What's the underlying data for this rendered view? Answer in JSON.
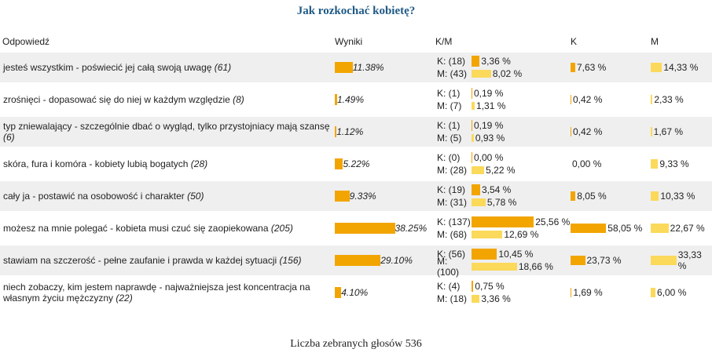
{
  "title": "Jak rozkochać kobietę?",
  "headers": {
    "answer": "Odpowiedź",
    "results": "Wyniki",
    "km": "K/M",
    "k": "K",
    "m": "M"
  },
  "rows": [
    {
      "text": "jesteś wszystkim - poświecić jej całą swoją uwagę",
      "count": "(61)",
      "pct": "11.38%",
      "pct_v": 11.38,
      "k_line": "K: (18)",
      "k_pct": "3,36 %",
      "k_v": 3.36,
      "m_line": "M: (43)",
      "m_pct": "8,02 %",
      "m_v": 8.02,
      "kk": "7,63 %",
      "kk_v": 7.63,
      "mm": "14,33 %",
      "mm_v": 14.33
    },
    {
      "text": "zrośnięci - dopasować się do niej w każdym względzie",
      "count": "(8)",
      "pct": "1.49%",
      "pct_v": 1.49,
      "k_line": "K: (1)",
      "k_pct": "0,19 %",
      "k_v": 0.19,
      "m_line": "M: (7)",
      "m_pct": "1,31 %",
      "m_v": 1.31,
      "kk": "0,42 %",
      "kk_v": 0.42,
      "mm": "2,33 %",
      "mm_v": 2.33
    },
    {
      "text": "typ zniewalający - szczególnie dbać o wygląd, tylko przystojniacy mają szansę",
      "count": "(6)",
      "pct": "1.12%",
      "pct_v": 1.12,
      "k_line": "K: (1)",
      "k_pct": "0,19 %",
      "k_v": 0.19,
      "m_line": "M: (5)",
      "m_pct": "0,93 %",
      "m_v": 0.93,
      "kk": "0,42 %",
      "kk_v": 0.42,
      "mm": "1,67 %",
      "mm_v": 1.67
    },
    {
      "text": "skóra, fura i komóra - kobiety lubią bogatych",
      "count": "(28)",
      "pct": "5.22%",
      "pct_v": 5.22,
      "k_line": "K: (0)",
      "k_pct": "0,00 %",
      "k_v": 0.0,
      "m_line": "M: (28)",
      "m_pct": "5,22 %",
      "m_v": 5.22,
      "kk": "0,00 %",
      "kk_v": 0.0,
      "mm": "9,33 %",
      "mm_v": 9.33
    },
    {
      "text": "cały ja - postawić na osobowość i charakter",
      "count": "(50)",
      "pct": "9.33%",
      "pct_v": 9.33,
      "k_line": "K: (19)",
      "k_pct": "3,54 %",
      "k_v": 3.54,
      "m_line": "M: (31)",
      "m_pct": "5,78 %",
      "m_v": 5.78,
      "kk": "8,05 %",
      "kk_v": 8.05,
      "mm": "10,33 %",
      "mm_v": 10.33
    },
    {
      "text": "możesz na mnie polegać - kobieta musi czuć się zaopiekowana",
      "count": "(205)",
      "pct": "38.25%",
      "pct_v": 38.25,
      "k_line": "K: (137)",
      "k_pct": "25,56 %",
      "k_v": 25.56,
      "m_line": "M: (68)",
      "m_pct": "12,69 %",
      "m_v": 12.69,
      "kk": "58,05 %",
      "kk_v": 58.05,
      "mm": "22,67 %",
      "mm_v": 22.67
    },
    {
      "text": "stawiam na szczerość - pełne zaufanie i prawda w każdej sytuacji",
      "count": "(156)",
      "pct": "29.10%",
      "pct_v": 29.1,
      "k_line": "K: (56)",
      "k_pct": "10,45 %",
      "k_v": 10.45,
      "m_line": "M: (100)",
      "m_pct": "18,66 %",
      "m_v": 18.66,
      "kk": "23,73 %",
      "kk_v": 23.73,
      "mm": "33,33 %",
      "mm_v": 33.33
    },
    {
      "text": "niech zobaczy, kim jestem naprawdę - najważniejsza jest koncentracja na własnym życiu mężczyzny",
      "count": "(22)",
      "pct": "4.10%",
      "pct_v": 4.1,
      "k_line": "K: (4)",
      "k_pct": "0,75 %",
      "k_v": 0.75,
      "m_line": "M: (18)",
      "m_pct": "3,36 %",
      "m_v": 3.36,
      "kk": "1,69 %",
      "kk_v": 1.69,
      "mm": "6,00 %",
      "mm_v": 6.0
    }
  ],
  "footer": "Liczba zebranych głosów 536"
}
